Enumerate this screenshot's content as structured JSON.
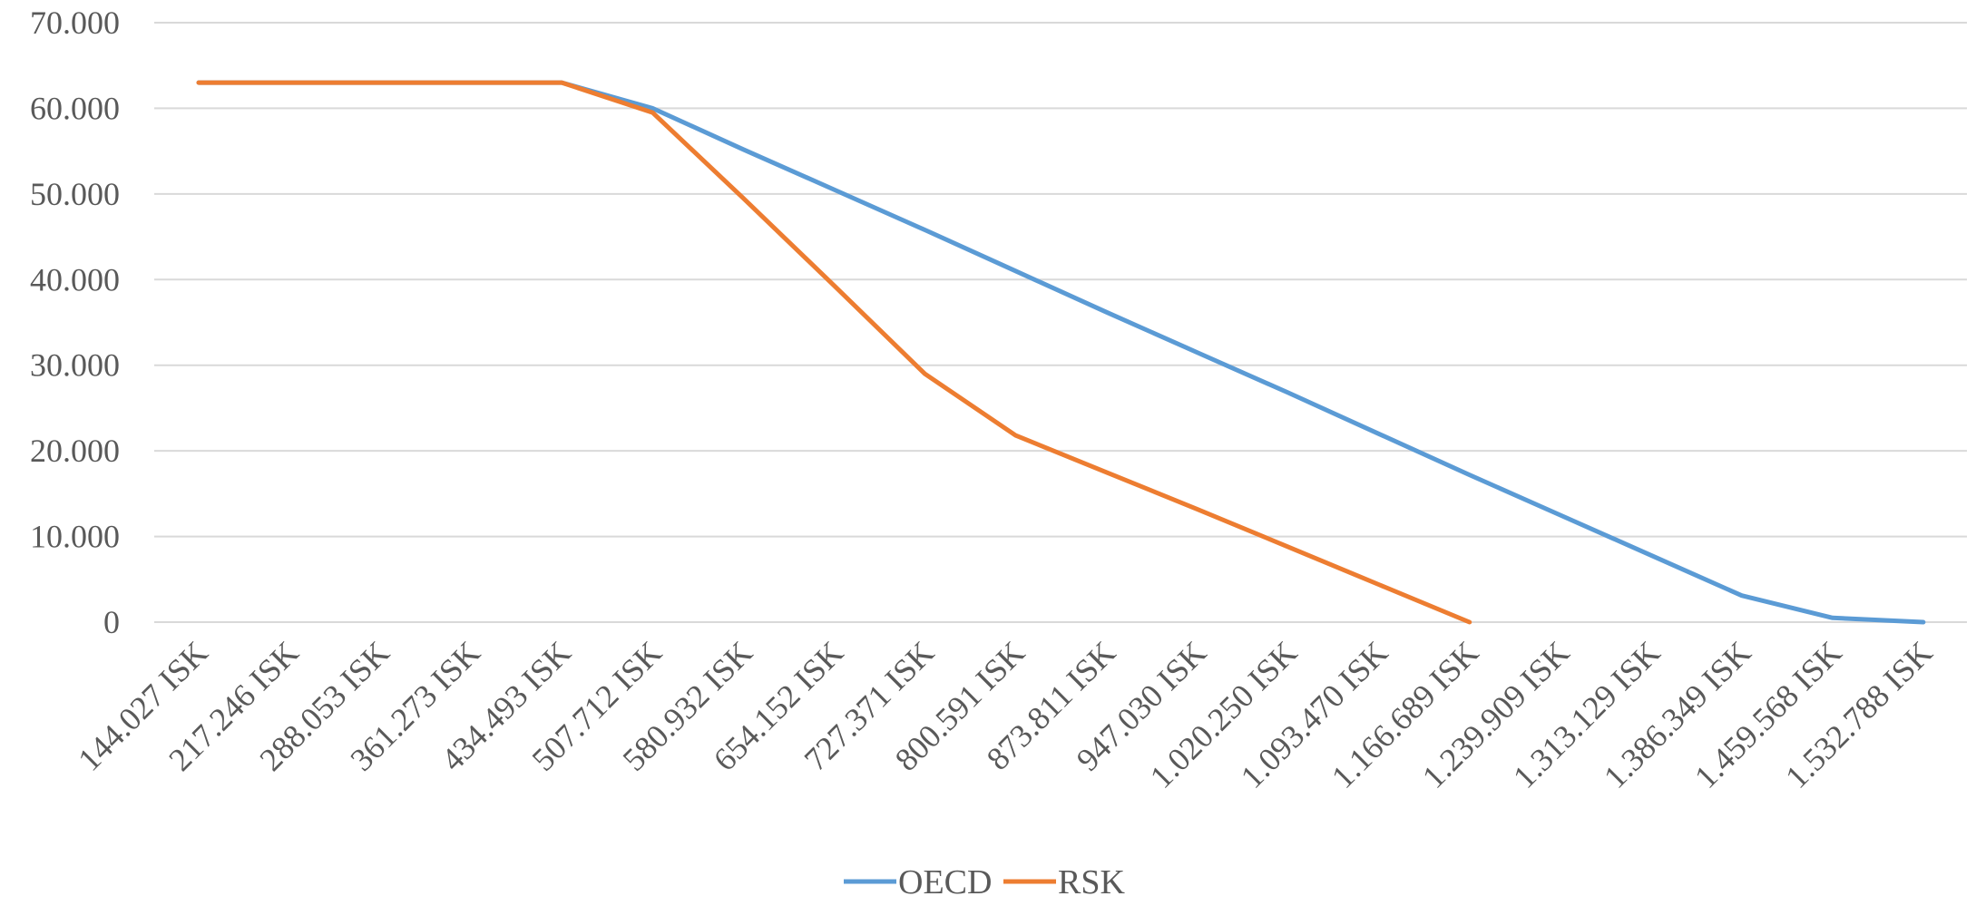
{
  "chart_data": {
    "type": "line",
    "title": "",
    "xlabel": "",
    "ylabel": "",
    "categories": [
      "144.027 ISK",
      "217.246 ISK",
      "288.053 ISK",
      "361.273 ISK",
      "434.493 ISK",
      "507.712 ISK",
      "580.932 ISK",
      "654.152 ISK",
      "727.371 ISK",
      "800.591 ISK",
      "873.811 ISK",
      "947.030 ISK",
      "1.020.250 ISK",
      "1.093.470 ISK",
      "1.166.689 ISK",
      "1.239.909 ISK",
      "1.313.129 ISK",
      "1.386.349 ISK",
      "1.459.568 ISK",
      "1.532.788 ISK"
    ],
    "y_ticks": [
      "0",
      "10.000",
      "20.000",
      "30.000",
      "40.000",
      "50.000",
      "60.000",
      "70.000"
    ],
    "ylim": [
      0,
      70000
    ],
    "grid": true,
    "legend_position": "bottom",
    "series": [
      {
        "name": "OECD",
        "color": "#5B9BD5",
        "values": [
          63000,
          63000,
          63000,
          63000,
          63000,
          60000,
          55200,
          50500,
          45800,
          41000,
          36200,
          31500,
          26800,
          22000,
          17200,
          12500,
          7800,
          3100,
          500,
          0
        ]
      },
      {
        "name": "RSK",
        "color": "#ED7D31",
        "values": [
          63000,
          63000,
          63000,
          63000,
          63000,
          59500,
          49500,
          39300,
          29000,
          21800,
          17500,
          13200,
          8800,
          4400,
          0,
          null,
          null,
          null,
          null,
          null
        ]
      }
    ]
  }
}
